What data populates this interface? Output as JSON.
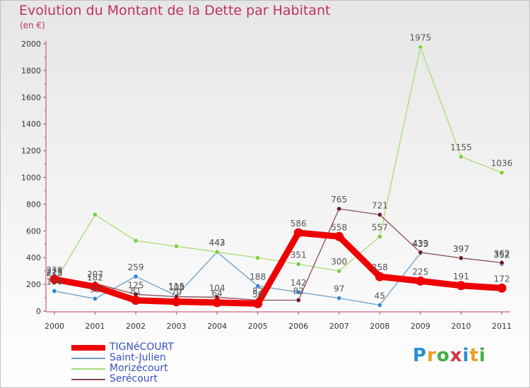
{
  "title": "Evolution du Montant de la Dette par Habitant",
  "subtitle": "(en €)",
  "logo": {
    "text": "Proxiti",
    "letter_colors": [
      "#2a8fd0",
      "#e8a020",
      "#40b040",
      "#d83040",
      "#2a8fd0",
      "#e8a020",
      "#40b040"
    ]
  },
  "chart_data": {
    "type": "line",
    "title": "Evolution du Montant de la Dette par Habitant",
    "subtitle": "(en €)",
    "x": [
      "2000",
      "2001",
      "2002",
      "2003",
      "2004",
      "2005",
      "2006",
      "2007",
      "2008",
      "2009",
      "2010",
      "2011"
    ],
    "ylim": [
      0,
      2000
    ],
    "yticks": [
      0,
      200,
      400,
      600,
      800,
      1000,
      1200,
      1400,
      1600,
      1800,
      2000
    ],
    "grid": false,
    "legend_position": "bottom-left",
    "series": [
      {
        "name": "Saint-Julien",
        "color": "#6a9ec8",
        "marker": "#2f88d8",
        "values": [
          150,
          93,
          259,
          115,
          443,
          188,
          142,
          97,
          45,
          433,
          null,
          352
        ]
      },
      {
        "name": "Morizécourt",
        "color": "#a6dd7a",
        "marker": "#7fcf3e",
        "values": [
          215,
          721,
          526,
          485,
          442,
          399,
          351,
          300,
          557,
          1975,
          1155,
          1036
        ]
      },
      {
        "name": "Serécourt",
        "color": "#8b4a52",
        "marker": "#6b1a24",
        "values": [
          223,
          207,
          125,
          108,
          104,
          82,
          82,
          765,
          721,
          439,
          397,
          362
        ]
      },
      {
        "name": "TIGNéCOURT",
        "color": "#ee0000",
        "marker": "#ee0000",
        "bold": true,
        "values": [
          238,
          182,
          81,
          70,
          64,
          56,
          586,
          558,
          258,
          225,
          191,
          172
        ]
      }
    ],
    "value_labels": [
      {
        "x": "2000",
        "text": "238"
      },
      {
        "x": "2000",
        "text": "223"
      },
      {
        "x": "2000",
        "text": "215"
      },
      {
        "x": "2000",
        "text": "150"
      },
      {
        "x": "2001",
        "text": "207"
      },
      {
        "x": "2001",
        "text": "182"
      },
      {
        "x": "2001",
        "text": "93"
      },
      {
        "x": "2002",
        "text": "259"
      },
      {
        "x": "2002",
        "text": "125"
      },
      {
        "x": "2002",
        "text": "81"
      },
      {
        "x": "2003",
        "text": "115"
      },
      {
        "x": "2003",
        "text": "108"
      },
      {
        "x": "2003",
        "text": "70"
      },
      {
        "x": "2004",
        "text": "443"
      },
      {
        "x": "2004",
        "text": "442"
      },
      {
        "x": "2004",
        "text": "104"
      },
      {
        "x": "2004",
        "text": "64"
      },
      {
        "x": "2005",
        "text": "188"
      },
      {
        "x": "2005",
        "text": "82"
      },
      {
        "x": "2005",
        "text": "56"
      },
      {
        "x": "2006",
        "text": "586"
      },
      {
        "x": "2006",
        "text": "351"
      },
      {
        "x": "2006",
        "text": "142"
      },
      {
        "x": "2006",
        "text": "82"
      },
      {
        "x": "2007",
        "text": "765"
      },
      {
        "x": "2007",
        "text": "558"
      },
      {
        "x": "2007",
        "text": "300"
      },
      {
        "x": "2007",
        "text": "97"
      },
      {
        "x": "2008",
        "text": "721"
      },
      {
        "x": "2008",
        "text": "557"
      },
      {
        "x": "2008",
        "text": "258"
      },
      {
        "x": "2008",
        "text": "45"
      },
      {
        "x": "2009",
        "text": "1975"
      },
      {
        "x": "2009",
        "text": "439"
      },
      {
        "x": "2009",
        "text": "433"
      },
      {
        "x": "2009",
        "text": "225"
      },
      {
        "x": "2010",
        "text": "1155"
      },
      {
        "x": "2010",
        "text": "397"
      },
      {
        "x": "2010",
        "text": "397"
      },
      {
        "x": "2010",
        "text": "191"
      },
      {
        "x": "2011",
        "text": "1036"
      },
      {
        "x": "2011",
        "text": "362"
      },
      {
        "x": "2011",
        "text": "352"
      },
      {
        "x": "2011",
        "text": "172"
      }
    ],
    "legend": [
      {
        "name": "TIGNéCOURT",
        "color": "#ee0000",
        "text_color": "#3a4fc0",
        "bold": true
      },
      {
        "name": "Saint-Julien",
        "color": "#6a9ec8",
        "text_color": "#3a4fc0"
      },
      {
        "name": "Morizécourt",
        "color": "#a6dd7a",
        "text_color": "#3a4fc0"
      },
      {
        "name": "Serécourt",
        "color": "#8b4a52",
        "text_color": "#3a4fc0"
      }
    ]
  }
}
